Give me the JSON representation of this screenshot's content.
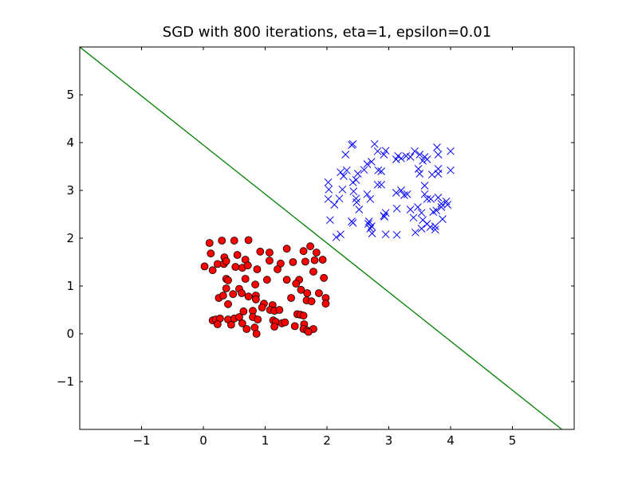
{
  "chart_data": {
    "type": "scatter",
    "title": "SGD with 800 iterations, eta=1, epsilon=0.01",
    "xlabel": "",
    "ylabel": "",
    "xlim": [
      -2,
      6
    ],
    "ylim": [
      -2,
      6
    ],
    "xticks": [
      -1,
      0,
      1,
      2,
      3,
      4,
      5
    ],
    "yticks": [
      -1,
      0,
      1,
      2,
      3,
      4,
      5
    ],
    "xtick_labels": [
      "−1",
      "0",
      "1",
      "2",
      "3",
      "4",
      "5"
    ],
    "ytick_labels": [
      "−1",
      "0",
      "1",
      "2",
      "3",
      "4",
      "5"
    ],
    "grid": false,
    "legend": "none",
    "series": [
      {
        "marker": "circle",
        "color": "#ff0000",
        "edge_color": "#000000",
        "points": [
          [
            0.1,
            1.9
          ],
          [
            0.3,
            1.95
          ],
          [
            0.5,
            1.95
          ],
          [
            0.73,
            1.96
          ],
          [
            0.12,
            1.68
          ],
          [
            0.34,
            1.6
          ],
          [
            0.55,
            1.65
          ],
          [
            0.68,
            1.55
          ],
          [
            0.92,
            1.72
          ],
          [
            1.07,
            1.7
          ],
          [
            1.35,
            1.78
          ],
          [
            1.62,
            1.73
          ],
          [
            1.73,
            1.83
          ],
          [
            1.83,
            1.7
          ],
          [
            1.93,
            1.55
          ],
          [
            0.02,
            1.41
          ],
          [
            0.15,
            1.33
          ],
          [
            0.23,
            1.46
          ],
          [
            0.33,
            1.46
          ],
          [
            0.37,
            1.52
          ],
          [
            0.52,
            1.4
          ],
          [
            0.63,
            1.38
          ],
          [
            0.72,
            1.43
          ],
          [
            0.87,
            1.35
          ],
          [
            1.07,
            1.53
          ],
          [
            1.25,
            1.47
          ],
          [
            1.2,
            1.35
          ],
          [
            1.45,
            1.5
          ],
          [
            1.65,
            1.51
          ],
          [
            1.8,
            1.54
          ],
          [
            1.78,
            1.3
          ],
          [
            0.37,
            1.15
          ],
          [
            0.4,
            1.12
          ],
          [
            0.68,
            1.15
          ],
          [
            0.37,
            0.95
          ],
          [
            0.58,
            0.94
          ],
          [
            0.84,
            1.03
          ],
          [
            1.03,
            1.13
          ],
          [
            1.35,
            1.13
          ],
          [
            1.55,
            1.13
          ],
          [
            1.5,
            1.05
          ],
          [
            1.58,
            0.92
          ],
          [
            1.68,
            0.85
          ],
          [
            1.87,
            0.85
          ],
          [
            1.95,
            1.17
          ],
          [
            0.25,
            0.75
          ],
          [
            0.32,
            0.8
          ],
          [
            0.48,
            0.83
          ],
          [
            0.62,
            0.85
          ],
          [
            0.73,
            0.78
          ],
          [
            0.85,
            0.8
          ],
          [
            0.85,
            0.72
          ],
          [
            1.42,
            0.75
          ],
          [
            1.67,
            0.7
          ],
          [
            1.75,
            0.68
          ],
          [
            1.98,
            0.75
          ],
          [
            1.98,
            0.63
          ],
          [
            0.4,
            0.62
          ],
          [
            0.65,
            0.47
          ],
          [
            0.8,
            0.48
          ],
          [
            0.98,
            0.63
          ],
          [
            1.12,
            0.6
          ],
          [
            1.08,
            0.5
          ],
          [
            1.15,
            0.48
          ],
          [
            1.23,
            0.5
          ],
          [
            1.52,
            0.41
          ],
          [
            1.57,
            0.4
          ],
          [
            1.62,
            0.38
          ],
          [
            0.15,
            0.28
          ],
          [
            0.2,
            0.3
          ],
          [
            0.27,
            0.32
          ],
          [
            0.23,
            0.2
          ],
          [
            0.4,
            0.3
          ],
          [
            0.5,
            0.32
          ],
          [
            0.45,
            0.19
          ],
          [
            0.63,
            0.22
          ],
          [
            0.8,
            0.35
          ],
          [
            0.88,
            0.3
          ],
          [
            1.13,
            0.28
          ],
          [
            1.17,
            0.25
          ],
          [
            1.27,
            0.22
          ],
          [
            1.32,
            0.24
          ],
          [
            1.15,
            0.15
          ],
          [
            1.48,
            0.16
          ],
          [
            1.63,
            0.2
          ],
          [
            1.62,
            0.1
          ],
          [
            1.68,
            0.07
          ],
          [
            1.78,
            0.1
          ],
          [
            0.7,
            0.1
          ],
          [
            0.83,
            0.13
          ],
          [
            0.86,
            0.0
          ],
          [
            1.7,
            0.04
          ],
          [
            0.58,
            0.35
          ],
          [
            0.95,
            0.55
          ]
        ]
      },
      {
        "marker": "x",
        "color": "#0000ff",
        "points": [
          [
            2.4,
            3.95
          ],
          [
            2.42,
            3.97
          ],
          [
            2.77,
            3.97
          ],
          [
            2.82,
            3.82
          ],
          [
            2.95,
            3.83
          ],
          [
            3.78,
            3.9
          ],
          [
            4.0,
            3.82
          ],
          [
            2.3,
            3.75
          ],
          [
            2.92,
            3.75
          ],
          [
            3.15,
            3.72
          ],
          [
            3.2,
            3.67
          ],
          [
            3.28,
            3.72
          ],
          [
            3.35,
            3.7
          ],
          [
            3.42,
            3.82
          ],
          [
            3.5,
            3.75
          ],
          [
            3.55,
            3.62
          ],
          [
            3.58,
            3.7
          ],
          [
            3.62,
            3.65
          ],
          [
            3.8,
            3.75
          ],
          [
            2.65,
            3.55
          ],
          [
            2.72,
            3.6
          ],
          [
            3.12,
            3.65
          ],
          [
            2.22,
            3.38
          ],
          [
            2.27,
            3.3
          ],
          [
            2.32,
            3.42
          ],
          [
            2.5,
            3.35
          ],
          [
            2.6,
            3.43
          ],
          [
            2.83,
            3.42
          ],
          [
            2.88,
            3.4
          ],
          [
            3.5,
            3.35
          ],
          [
            3.48,
            3.45
          ],
          [
            3.7,
            3.33
          ],
          [
            3.8,
            3.45
          ],
          [
            3.8,
            3.35
          ],
          [
            4.0,
            3.42
          ],
          [
            2.42,
            3.17
          ],
          [
            2.47,
            3.22
          ],
          [
            2.82,
            3.12
          ],
          [
            2.88,
            3.12
          ],
          [
            2.02,
            3.17
          ],
          [
            2.25,
            3.02
          ],
          [
            2.2,
            2.83
          ],
          [
            2.03,
            3.02
          ],
          [
            2.43,
            2.98
          ],
          [
            2.48,
            2.75
          ],
          [
            2.47,
            2.83
          ],
          [
            2.65,
            2.92
          ],
          [
            2.7,
            2.82
          ],
          [
            3.12,
            2.95
          ],
          [
            3.2,
            3.0
          ],
          [
            3.25,
            2.9
          ],
          [
            3.3,
            2.92
          ],
          [
            3.58,
            3.1
          ],
          [
            3.58,
            2.92
          ],
          [
            3.62,
            2.82
          ],
          [
            3.68,
            2.82
          ],
          [
            3.8,
            2.85
          ],
          [
            3.85,
            2.72
          ],
          [
            3.85,
            2.65
          ],
          [
            3.93,
            2.77
          ],
          [
            3.95,
            2.7
          ],
          [
            2.02,
            2.82
          ],
          [
            2.12,
            2.7
          ],
          [
            2.52,
            2.6
          ],
          [
            3.13,
            2.62
          ],
          [
            3.35,
            2.6
          ],
          [
            3.47,
            2.65
          ],
          [
            3.53,
            2.53
          ],
          [
            3.77,
            2.58
          ],
          [
            3.72,
            2.55
          ],
          [
            2.92,
            2.47
          ],
          [
            2.93,
            2.45
          ],
          [
            2.95,
            2.53
          ],
          [
            2.05,
            2.38
          ],
          [
            2.4,
            2.35
          ],
          [
            2.42,
            2.32
          ],
          [
            2.67,
            2.3
          ],
          [
            2.72,
            2.25
          ],
          [
            2.7,
            2.2
          ],
          [
            3.4,
            2.43
          ],
          [
            3.55,
            2.38
          ],
          [
            3.62,
            2.3
          ],
          [
            3.67,
            2.23
          ],
          [
            3.75,
            2.18
          ],
          [
            3.75,
            2.25
          ],
          [
            3.87,
            2.4
          ],
          [
            2.73,
            2.1
          ],
          [
            2.95,
            2.08
          ],
          [
            3.13,
            2.07
          ],
          [
            3.43,
            2.12
          ],
          [
            3.53,
            2.2
          ],
          [
            2.22,
            2.08
          ],
          [
            2.15,
            2.02
          ],
          [
            2.68,
            2.35
          ]
        ]
      }
    ],
    "lines": [
      {
        "color": "#008000",
        "x": [
          -2,
          5.8
        ],
        "y": [
          6,
          -2
        ]
      }
    ]
  }
}
